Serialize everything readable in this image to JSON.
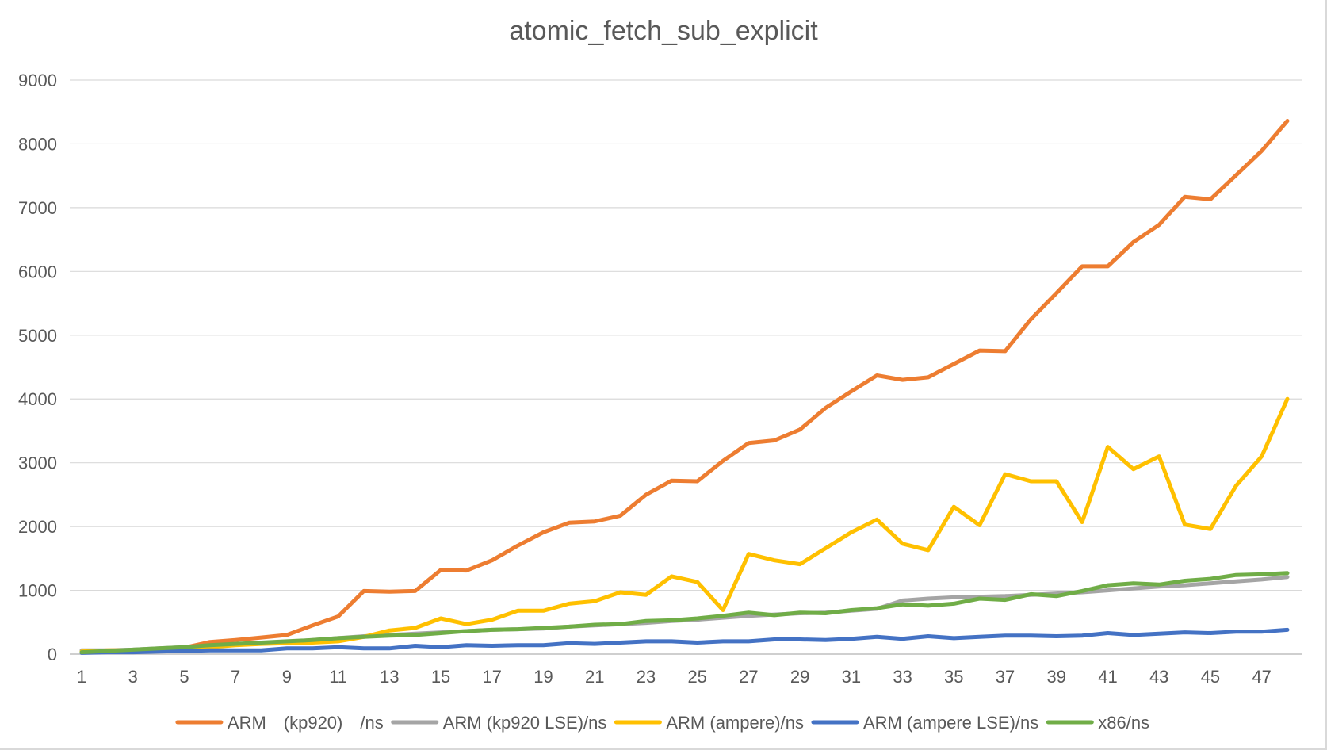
{
  "chart_data": {
    "type": "line",
    "title": "atomic_fetch_sub_explicit",
    "xlabel": "",
    "ylabel": "",
    "x": [
      1,
      2,
      3,
      4,
      5,
      6,
      7,
      8,
      9,
      10,
      11,
      12,
      13,
      14,
      15,
      16,
      17,
      18,
      19,
      20,
      21,
      22,
      23,
      24,
      25,
      26,
      27,
      28,
      29,
      30,
      31,
      32,
      33,
      34,
      35,
      36,
      37,
      38,
      39,
      40,
      41,
      42,
      43,
      44,
      45,
      46,
      47,
      48
    ],
    "x_tick_labels": [
      "1",
      "3",
      "5",
      "7",
      "9",
      "11",
      "13",
      "15",
      "17",
      "19",
      "21",
      "23",
      "25",
      "27",
      "29",
      "31",
      "33",
      "35",
      "37",
      "39",
      "41",
      "43",
      "45",
      "47"
    ],
    "ylim": [
      0,
      9000
    ],
    "y_ticks": [
      0,
      1000,
      2000,
      3000,
      4000,
      5000,
      6000,
      7000,
      8000,
      9000
    ],
    "y_tick_labels": [
      "0",
      "1000",
      "2000",
      "3000",
      "4000",
      "5000",
      "6000",
      "7000",
      "8000",
      "9000"
    ],
    "grid": "horizontal",
    "legend": "bottom",
    "series": [
      {
        "name": "ARM　(kp920)　/ns",
        "color": "#ED7D31",
        "values": [
          30,
          50,
          60,
          80,
          100,
          190,
          220,
          260,
          300,
          450,
          590,
          990,
          980,
          990,
          1320,
          1310,
          1470,
          1700,
          1910,
          2060,
          2080,
          2170,
          2500,
          2720,
          2710,
          3030,
          3310,
          3350,
          3520,
          3860,
          4120,
          4370,
          4300,
          4340,
          4550,
          4760,
          4750,
          5250,
          5660,
          6080,
          6080,
          6460,
          6730,
          7170,
          7130,
          7510,
          7890,
          8360
        ]
      },
      {
        "name": "ARM (kp920 LSE)/ns",
        "color": "#A5A5A5",
        "values": [
          60,
          60,
          70,
          90,
          110,
          130,
          150,
          170,
          190,
          220,
          250,
          280,
          300,
          320,
          340,
          360,
          380,
          390,
          400,
          430,
          450,
          470,
          490,
          520,
          540,
          570,
          600,
          620,
          640,
          650,
          680,
          710,
          840,
          870,
          890,
          900,
          910,
          930,
          950,
          970,
          1000,
          1030,
          1060,
          1080,
          1110,
          1140,
          1170,
          1210
        ]
      },
      {
        "name": "ARM (ampere)/ns",
        "color": "#FFC000",
        "values": [
          40,
          60,
          60,
          80,
          100,
          110,
          140,
          160,
          170,
          180,
          200,
          270,
          370,
          410,
          560,
          470,
          540,
          680,
          680,
          790,
          830,
          970,
          930,
          1220,
          1130,
          690,
          1570,
          1470,
          1410,
          1660,
          1910,
          2110,
          1730,
          1630,
          2310,
          2020,
          2820,
          2710,
          2710,
          2070,
          3250,
          2900,
          3100,
          2030,
          1960,
          2640,
          3100,
          4000
        ]
      },
      {
        "name": "ARM (ampere LSE)/ns",
        "color": "#4472C4",
        "values": [
          20,
          30,
          30,
          40,
          50,
          60,
          60,
          60,
          90,
          90,
          110,
          90,
          90,
          130,
          110,
          140,
          130,
          140,
          140,
          170,
          160,
          180,
          200,
          200,
          180,
          200,
          200,
          230,
          230,
          220,
          240,
          270,
          240,
          280,
          250,
          270,
          290,
          290,
          280,
          290,
          330,
          300,
          320,
          340,
          330,
          350,
          350,
          380
        ]
      },
      {
        "name": "x86/ns",
        "color": "#70AD47",
        "values": [
          30,
          50,
          70,
          90,
          110,
          140,
          160,
          180,
          200,
          220,
          250,
          270,
          290,
          300,
          330,
          360,
          380,
          390,
          410,
          430,
          460,
          470,
          520,
          530,
          560,
          600,
          650,
          610,
          650,
          640,
          690,
          720,
          780,
          760,
          790,
          870,
          850,
          940,
          910,
          990,
          1080,
          1110,
          1090,
          1150,
          1180,
          1240,
          1250,
          1270
        ]
      }
    ]
  }
}
